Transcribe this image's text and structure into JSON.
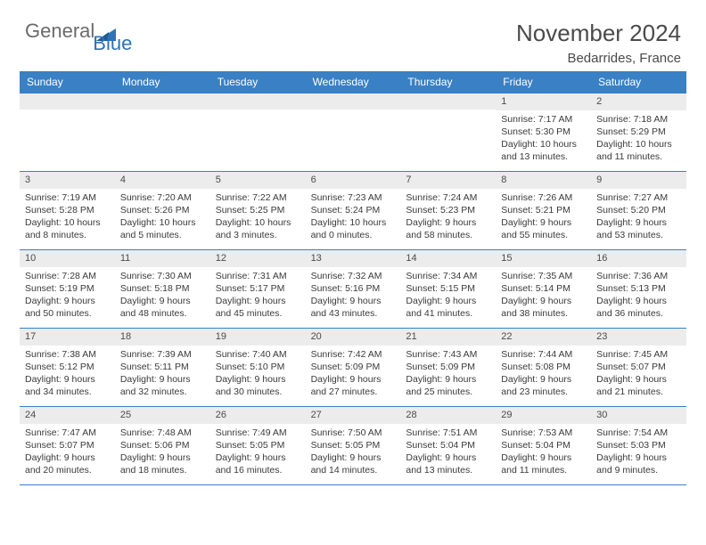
{
  "logo": {
    "text_general": "General",
    "text_blue": "Blue",
    "icon_name": "logo-triangle-icon",
    "icon_color": "#2f72b6"
  },
  "header": {
    "month_year": "November 2024",
    "location": "Bedarrides, France"
  },
  "colors": {
    "header_bg": "#3980c4",
    "header_text": "#ffffff",
    "daynum_bg": "#ececec",
    "border": "#3980c4",
    "body_text": "#3a3a3a"
  },
  "day_names": [
    "Sunday",
    "Monday",
    "Tuesday",
    "Wednesday",
    "Thursday",
    "Friday",
    "Saturday"
  ],
  "weeks": [
    [
      {
        "empty": true
      },
      {
        "empty": true
      },
      {
        "empty": true
      },
      {
        "empty": true
      },
      {
        "empty": true
      },
      {
        "day": "1",
        "sunrise": "Sunrise: 7:17 AM",
        "sunset": "Sunset: 5:30 PM",
        "daylight": "Daylight: 10 hours and 13 minutes."
      },
      {
        "day": "2",
        "sunrise": "Sunrise: 7:18 AM",
        "sunset": "Sunset: 5:29 PM",
        "daylight": "Daylight: 10 hours and 11 minutes."
      }
    ],
    [
      {
        "day": "3",
        "sunrise": "Sunrise: 7:19 AM",
        "sunset": "Sunset: 5:28 PM",
        "daylight": "Daylight: 10 hours and 8 minutes."
      },
      {
        "day": "4",
        "sunrise": "Sunrise: 7:20 AM",
        "sunset": "Sunset: 5:26 PM",
        "daylight": "Daylight: 10 hours and 5 minutes."
      },
      {
        "day": "5",
        "sunrise": "Sunrise: 7:22 AM",
        "sunset": "Sunset: 5:25 PM",
        "daylight": "Daylight: 10 hours and 3 minutes."
      },
      {
        "day": "6",
        "sunrise": "Sunrise: 7:23 AM",
        "sunset": "Sunset: 5:24 PM",
        "daylight": "Daylight: 10 hours and 0 minutes."
      },
      {
        "day": "7",
        "sunrise": "Sunrise: 7:24 AM",
        "sunset": "Sunset: 5:23 PM",
        "daylight": "Daylight: 9 hours and 58 minutes."
      },
      {
        "day": "8",
        "sunrise": "Sunrise: 7:26 AM",
        "sunset": "Sunset: 5:21 PM",
        "daylight": "Daylight: 9 hours and 55 minutes."
      },
      {
        "day": "9",
        "sunrise": "Sunrise: 7:27 AM",
        "sunset": "Sunset: 5:20 PM",
        "daylight": "Daylight: 9 hours and 53 minutes."
      }
    ],
    [
      {
        "day": "10",
        "sunrise": "Sunrise: 7:28 AM",
        "sunset": "Sunset: 5:19 PM",
        "daylight": "Daylight: 9 hours and 50 minutes."
      },
      {
        "day": "11",
        "sunrise": "Sunrise: 7:30 AM",
        "sunset": "Sunset: 5:18 PM",
        "daylight": "Daylight: 9 hours and 48 minutes."
      },
      {
        "day": "12",
        "sunrise": "Sunrise: 7:31 AM",
        "sunset": "Sunset: 5:17 PM",
        "daylight": "Daylight: 9 hours and 45 minutes."
      },
      {
        "day": "13",
        "sunrise": "Sunrise: 7:32 AM",
        "sunset": "Sunset: 5:16 PM",
        "daylight": "Daylight: 9 hours and 43 minutes."
      },
      {
        "day": "14",
        "sunrise": "Sunrise: 7:34 AM",
        "sunset": "Sunset: 5:15 PM",
        "daylight": "Daylight: 9 hours and 41 minutes."
      },
      {
        "day": "15",
        "sunrise": "Sunrise: 7:35 AM",
        "sunset": "Sunset: 5:14 PM",
        "daylight": "Daylight: 9 hours and 38 minutes."
      },
      {
        "day": "16",
        "sunrise": "Sunrise: 7:36 AM",
        "sunset": "Sunset: 5:13 PM",
        "daylight": "Daylight: 9 hours and 36 minutes."
      }
    ],
    [
      {
        "day": "17",
        "sunrise": "Sunrise: 7:38 AM",
        "sunset": "Sunset: 5:12 PM",
        "daylight": "Daylight: 9 hours and 34 minutes."
      },
      {
        "day": "18",
        "sunrise": "Sunrise: 7:39 AM",
        "sunset": "Sunset: 5:11 PM",
        "daylight": "Daylight: 9 hours and 32 minutes."
      },
      {
        "day": "19",
        "sunrise": "Sunrise: 7:40 AM",
        "sunset": "Sunset: 5:10 PM",
        "daylight": "Daylight: 9 hours and 30 minutes."
      },
      {
        "day": "20",
        "sunrise": "Sunrise: 7:42 AM",
        "sunset": "Sunset: 5:09 PM",
        "daylight": "Daylight: 9 hours and 27 minutes."
      },
      {
        "day": "21",
        "sunrise": "Sunrise: 7:43 AM",
        "sunset": "Sunset: 5:09 PM",
        "daylight": "Daylight: 9 hours and 25 minutes."
      },
      {
        "day": "22",
        "sunrise": "Sunrise: 7:44 AM",
        "sunset": "Sunset: 5:08 PM",
        "daylight": "Daylight: 9 hours and 23 minutes."
      },
      {
        "day": "23",
        "sunrise": "Sunrise: 7:45 AM",
        "sunset": "Sunset: 5:07 PM",
        "daylight": "Daylight: 9 hours and 21 minutes."
      }
    ],
    [
      {
        "day": "24",
        "sunrise": "Sunrise: 7:47 AM",
        "sunset": "Sunset: 5:07 PM",
        "daylight": "Daylight: 9 hours and 20 minutes."
      },
      {
        "day": "25",
        "sunrise": "Sunrise: 7:48 AM",
        "sunset": "Sunset: 5:06 PM",
        "daylight": "Daylight: 9 hours and 18 minutes."
      },
      {
        "day": "26",
        "sunrise": "Sunrise: 7:49 AM",
        "sunset": "Sunset: 5:05 PM",
        "daylight": "Daylight: 9 hours and 16 minutes."
      },
      {
        "day": "27",
        "sunrise": "Sunrise: 7:50 AM",
        "sunset": "Sunset: 5:05 PM",
        "daylight": "Daylight: 9 hours and 14 minutes."
      },
      {
        "day": "28",
        "sunrise": "Sunrise: 7:51 AM",
        "sunset": "Sunset: 5:04 PM",
        "daylight": "Daylight: 9 hours and 13 minutes."
      },
      {
        "day": "29",
        "sunrise": "Sunrise: 7:53 AM",
        "sunset": "Sunset: 5:04 PM",
        "daylight": "Daylight: 9 hours and 11 minutes."
      },
      {
        "day": "30",
        "sunrise": "Sunrise: 7:54 AM",
        "sunset": "Sunset: 5:03 PM",
        "daylight": "Daylight: 9 hours and 9 minutes."
      }
    ]
  ]
}
